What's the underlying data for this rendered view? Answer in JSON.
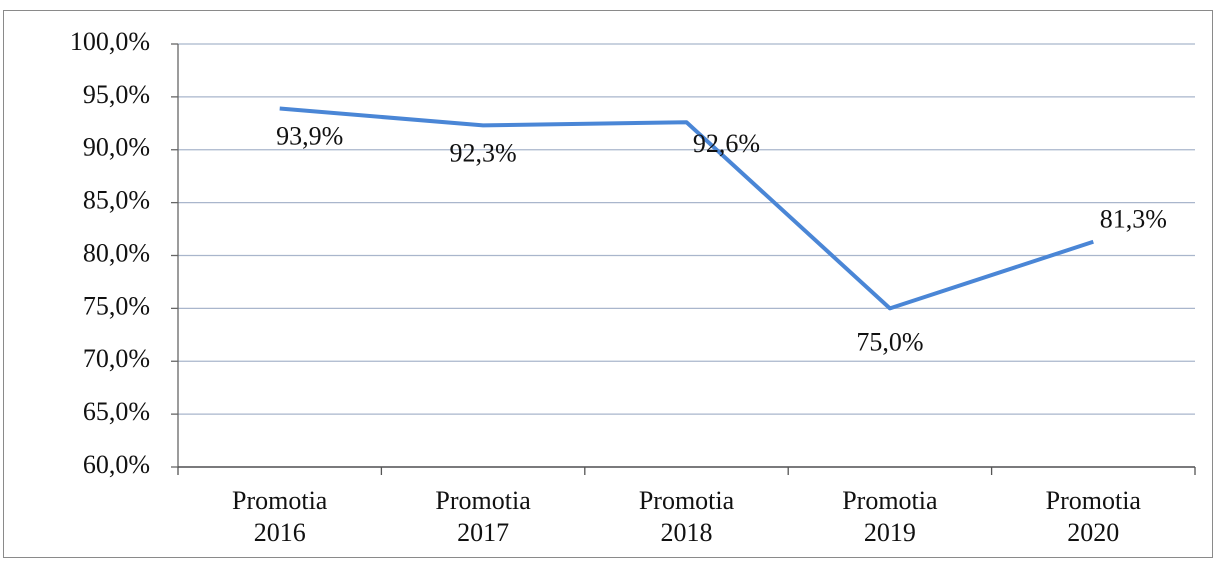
{
  "chart_data": {
    "type": "line",
    "categories": [
      "Promotia 2016",
      "Promotia 2017",
      "Promotia 2018",
      "Promotia 2019",
      "Promotia 2020"
    ],
    "values": [
      93.9,
      92.3,
      92.6,
      75.0,
      81.3
    ],
    "value_labels": [
      "93,9%",
      "92,3%",
      "92,6%",
      "75,0%",
      "81,3%"
    ],
    "color": "#4a86d6",
    "ylim": [
      60,
      100
    ],
    "yticks": [
      {
        "value": 60,
        "label": "60,0%"
      },
      {
        "value": 65,
        "label": "65,0%"
      },
      {
        "value": 70,
        "label": "70,0%"
      },
      {
        "value": 75,
        "label": "75,0%"
      },
      {
        "value": 80,
        "label": "80,0%"
      },
      {
        "value": 85,
        "label": "85,0%"
      },
      {
        "value": 90,
        "label": "90,0%"
      },
      {
        "value": 95,
        "label": "95,0%"
      },
      {
        "value": 100,
        "label": "100,0%"
      }
    ],
    "grid": true
  }
}
